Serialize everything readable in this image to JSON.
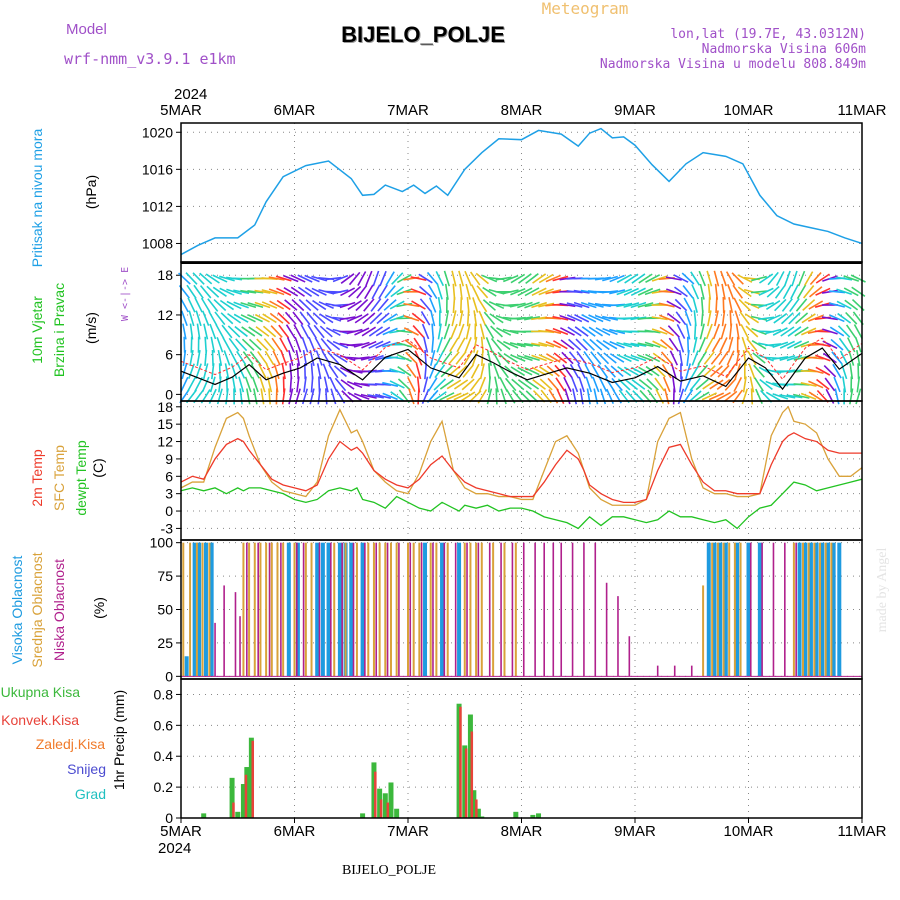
{
  "header": {
    "model_label": "Model",
    "model_name": "wrf-nmm_v3.9.1 e1km",
    "station": "BIJELO_POLJE",
    "product": "Meteogram",
    "lonlat": "lon,lat (19.7E, 43.0312N)",
    "elevation": "Nadmorska Visina 606m",
    "model_elevation": "Nadmorska Visina u modelu 808.849m",
    "footer_station": "BIJELO_POLJE",
    "watermark": "made by Angel"
  },
  "colors": {
    "pressure": "#1ea0e6",
    "temp2m": "#ee3a2a",
    "sfc": "#d9a23a",
    "dew": "#22c322",
    "high_cloud": "#1e9be0",
    "mid_cloud": "#d9a23a",
    "low_cloud": "#b0208c",
    "total_precip": "#3cb83c",
    "conv_precip": "#e8433a",
    "frozen_precip": "#f07a2a",
    "snow": "#4b4bd0",
    "hail": "#20c0c0",
    "purple_label": "#a050c8",
    "wind_ylabel": "#22c322"
  },
  "chart_data": {
    "x_axis": {
      "year": "2024",
      "ticks": [
        "5MAR",
        "6MAR",
        "7MAR",
        "8MAR",
        "9MAR",
        "10MAR",
        "11MAR"
      ],
      "range_days": [
        0,
        6
      ]
    },
    "pressure": {
      "type": "line",
      "ylabel": "Pritisak na nivou mora",
      "unit": "(hPa)",
      "ylim": [
        1006,
        1021
      ],
      "yticks": [
        1008,
        1012,
        1016,
        1020
      ],
      "x": [
        0,
        0.15,
        0.3,
        0.5,
        0.65,
        0.75,
        0.9,
        1.1,
        1.3,
        1.5,
        1.6,
        1.7,
        1.8,
        1.95,
        2.05,
        2.15,
        2.25,
        2.35,
        2.5,
        2.65,
        2.8,
        3.0,
        3.15,
        3.35,
        3.5,
        3.6,
        3.7,
        3.8,
        3.9,
        4.0,
        4.15,
        4.3,
        4.45,
        4.6,
        4.7,
        4.8,
        4.95,
        5.1,
        5.25,
        5.4,
        5.55,
        5.7,
        5.85,
        6.0
      ],
      "y": [
        1006.8,
        1007.8,
        1008.6,
        1008.6,
        1010.0,
        1012.5,
        1015.2,
        1016.4,
        1016.9,
        1015.0,
        1013.2,
        1013.3,
        1014.3,
        1013.6,
        1014.3,
        1013.4,
        1014.2,
        1013.2,
        1016.0,
        1017.8,
        1019.3,
        1019.2,
        1020.2,
        1019.8,
        1018.5,
        1019.9,
        1020.4,
        1019.4,
        1019.5,
        1018.6,
        1016.5,
        1014.7,
        1016.6,
        1017.8,
        1017.6,
        1017.4,
        1016.6,
        1013.2,
        1011.0,
        1010.1,
        1009.7,
        1009.3,
        1008.6,
        1008.0
      ]
    },
    "wind": {
      "type": "line",
      "ylabel": "10m Vjetar",
      "ylabel2": "Brzina i Pravac",
      "unit": "(m/s)",
      "compass": "W <-|-> E",
      "ylim": [
        -1,
        20
      ],
      "yticks": [
        0,
        6,
        12,
        18
      ],
      "x": [
        0,
        0.15,
        0.3,
        0.45,
        0.6,
        0.75,
        0.9,
        1.05,
        1.2,
        1.4,
        1.6,
        1.8,
        2.0,
        2.2,
        2.45,
        2.6,
        2.75,
        2.9,
        3.05,
        3.2,
        3.4,
        3.6,
        3.8,
        4.0,
        4.2,
        4.4,
        4.6,
        4.8,
        5.0,
        5.15,
        5.3,
        5.5,
        5.65,
        5.8,
        6.0
      ],
      "y": [
        3.5,
        2.5,
        1.5,
        2.6,
        4.5,
        2.2,
        3.2,
        4.0,
        5.5,
        4.5,
        2.2,
        5.6,
        6.8,
        4.0,
        2.5,
        6.0,
        4.8,
        3.4,
        2.2,
        3.0,
        4.0,
        3.2,
        1.8,
        2.5,
        4.2,
        2.0,
        2.8,
        1.2,
        5.5,
        4.0,
        0.8,
        5.5,
        7.0,
        3.8,
        6.2
      ]
    },
    "temperature": {
      "type": "line",
      "ylabels": [
        "2m Temp",
        "SFC Temp",
        "dewpt Temp"
      ],
      "unit": "(C)",
      "ylim": [
        -5,
        19
      ],
      "yticks": [
        -3,
        0,
        3,
        6,
        9,
        12,
        15,
        18
      ],
      "x": [
        0,
        0.1,
        0.2,
        0.3,
        0.4,
        0.5,
        0.55,
        0.6,
        0.7,
        0.8,
        0.9,
        1.0,
        1.1,
        1.2,
        1.3,
        1.4,
        1.5,
        1.55,
        1.6,
        1.7,
        1.8,
        1.9,
        2.0,
        2.1,
        2.2,
        2.3,
        2.4,
        2.45,
        2.5,
        2.6,
        2.7,
        2.8,
        2.9,
        3.0,
        3.1,
        3.2,
        3.3,
        3.4,
        3.5,
        3.55,
        3.6,
        3.7,
        3.8,
        3.9,
        4.0,
        4.1,
        4.2,
        4.3,
        4.4,
        4.5,
        4.6,
        4.7,
        4.8,
        4.9,
        5.0,
        5.1,
        5.2,
        5.3,
        5.35,
        5.4,
        5.5,
        5.6,
        5.7,
        5.8,
        5.9,
        6.0
      ],
      "t2m": [
        5.0,
        6.0,
        5.5,
        9.0,
        11.5,
        12.5,
        12.0,
        10.5,
        8.0,
        5.5,
        4.5,
        4.0,
        3.5,
        4.5,
        9.0,
        12.0,
        10.5,
        11.0,
        10.0,
        7.0,
        5.5,
        4.5,
        4.0,
        5.5,
        8.0,
        9.5,
        7.0,
        6.0,
        5.0,
        4.0,
        3.5,
        3.0,
        2.5,
        2.5,
        2.5,
        5.0,
        8.0,
        10.5,
        9.0,
        7.0,
        4.5,
        3.0,
        2.0,
        1.5,
        1.5,
        2.0,
        7.0,
        11.0,
        11.5,
        8.0,
        5.0,
        3.5,
        3.5,
        3.0,
        3.0,
        3.0,
        8.0,
        12.0,
        13.0,
        13.5,
        12.5,
        12.0,
        10.5,
        10.0,
        10.0,
        10.0
      ],
      "sfc": [
        4.0,
        5.0,
        5.0,
        11.0,
        16.0,
        17.0,
        16.0,
        13.0,
        8.0,
        5.0,
        3.5,
        3.0,
        2.5,
        5.0,
        13.0,
        17.5,
        13.5,
        14.0,
        12.0,
        7.0,
        5.0,
        3.5,
        3.0,
        6.5,
        12.0,
        15.5,
        7.0,
        5.5,
        4.0,
        3.0,
        3.0,
        2.5,
        2.5,
        2.0,
        2.0,
        7.0,
        12.0,
        13.0,
        10.0,
        7.0,
        4.0,
        2.0,
        1.0,
        1.0,
        1.0,
        2.0,
        12.0,
        16.0,
        17.0,
        9.0,
        4.0,
        3.0,
        3.0,
        2.5,
        2.5,
        3.0,
        13.0,
        17.0,
        18.0,
        15.5,
        15.0,
        13.5,
        9.0,
        6.0,
        6.0,
        7.5
      ],
      "dew": [
        3.5,
        4.0,
        3.5,
        4.0,
        3.0,
        4.0,
        3.5,
        4.0,
        4.0,
        3.5,
        3.0,
        2.0,
        1.5,
        2.0,
        3.5,
        4.0,
        3.5,
        4.0,
        2.0,
        1.5,
        0.5,
        2.5,
        1.5,
        0.5,
        0.0,
        1.5,
        0.5,
        0.0,
        1.0,
        0.5,
        1.0,
        0.0,
        0.5,
        0.5,
        0.0,
        -1.0,
        -1.5,
        -2.0,
        -3.0,
        -2.0,
        -1.0,
        -2.5,
        -1.0,
        -1.0,
        -1.5,
        -2.0,
        -1.5,
        0.0,
        -1.0,
        -1.0,
        -1.5,
        -2.0,
        -1.5,
        -3.0,
        -1.0,
        0.5,
        1.0,
        3.0,
        4.0,
        5.0,
        4.5,
        3.5,
        4.0,
        4.5,
        5.0,
        5.5
      ]
    },
    "clouds": {
      "type": "bar",
      "ylabels": [
        "Visoka Oblacnost",
        "Srednja Oblacnost",
        "Niska Oblacnost"
      ],
      "unit": "(%)",
      "ylim": [
        -2,
        102
      ],
      "yticks": [
        0,
        25,
        50,
        75,
        100
      ],
      "high_x": [
        0.05,
        0.12,
        0.16,
        0.22,
        0.27,
        0.95,
        1.03,
        1.2,
        1.25,
        1.3,
        1.4,
        1.45,
        1.5,
        1.6,
        2.15,
        2.3,
        2.45,
        4.65,
        4.7,
        4.75,
        4.8,
        4.9,
        5.0,
        5.1,
        5.45,
        5.5,
        5.55,
        5.6,
        5.65,
        5.7,
        5.75,
        5.8
      ],
      "high_y": [
        15,
        100,
        100,
        100,
        100,
        100,
        100,
        100,
        100,
        100,
        100,
        100,
        100,
        100,
        100,
        100,
        100,
        100,
        100,
        100,
        100,
        100,
        100,
        100,
        100,
        100,
        100,
        100,
        100,
        100,
        100,
        100
      ],
      "mid_x": [
        0.02,
        0.08,
        0.14,
        0.19,
        0.25,
        0.55,
        0.6,
        0.65,
        0.7,
        0.75,
        0.8,
        0.85,
        0.9,
        1.0,
        1.1,
        1.15,
        1.35,
        1.45,
        1.55,
        1.65,
        1.7,
        1.75,
        1.8,
        1.85,
        1.9,
        2.0,
        2.05,
        2.1,
        2.2,
        2.25,
        2.35,
        2.5,
        2.55,
        2.6,
        2.65,
        2.75,
        2.85,
        2.95,
        4.6,
        4.68,
        4.73,
        4.78,
        4.83,
        4.88,
        4.93,
        5.4,
        5.48,
        5.53,
        5.58,
        5.63,
        5.68,
        5.73
      ],
      "mid_y": [
        100,
        100,
        100,
        100,
        100,
        100,
        100,
        100,
        100,
        100,
        100,
        100,
        100,
        100,
        100,
        100,
        100,
        100,
        100,
        100,
        100,
        100,
        100,
        100,
        100,
        100,
        100,
        100,
        100,
        100,
        100,
        100,
        100,
        100,
        100,
        100,
        100,
        100,
        68,
        100,
        100,
        100,
        100,
        100,
        100,
        100,
        100,
        100,
        100,
        100,
        100,
        100
      ],
      "low_x": [
        0.3,
        0.38,
        0.48,
        0.52,
        0.58,
        0.68,
        0.78,
        0.88,
        1.02,
        1.08,
        1.22,
        1.32,
        1.42,
        1.52,
        1.62,
        1.72,
        1.82,
        1.92,
        2.02,
        2.12,
        2.22,
        2.32,
        2.42,
        2.52,
        2.62,
        2.72,
        2.82,
        2.92,
        3.02,
        3.12,
        3.2,
        3.28,
        3.35,
        3.45,
        3.55,
        3.65,
        3.75,
        3.85,
        3.95,
        4.2,
        4.35,
        4.5,
        5.02,
        5.12,
        5.22,
        5.32,
        5.42
      ],
      "low_y": [
        40,
        68,
        63,
        45,
        100,
        100,
        100,
        100,
        100,
        100,
        100,
        100,
        100,
        100,
        100,
        100,
        100,
        100,
        100,
        100,
        100,
        100,
        100,
        100,
        100,
        100,
        100,
        100,
        100,
        100,
        100,
        100,
        100,
        100,
        100,
        100,
        70,
        60,
        30,
        8,
        8,
        8,
        100,
        100,
        100,
        100,
        100
      ]
    },
    "precip": {
      "type": "bar",
      "ylabels": [
        "Ukupna Kisa",
        "Konvek.Kisa",
        "Zaledj.Kisa",
        "Snijeg",
        "Grad"
      ],
      "unit": "1hr Precip (mm)",
      "ylim": [
        0,
        0.9
      ],
      "yticks": [
        0,
        0.2,
        0.4,
        0.6,
        0.8
      ],
      "total_x": [
        0.2,
        0.45,
        0.5,
        0.55,
        0.58,
        0.62,
        1.6,
        1.7,
        1.75,
        1.8,
        1.85,
        1.9,
        2.45,
        2.5,
        2.55,
        2.58,
        2.62,
        2.65,
        2.95,
        3.1,
        3.15
      ],
      "total_y": [
        0.03,
        0.26,
        0.04,
        0.22,
        0.33,
        0.52,
        0.03,
        0.36,
        0.19,
        0.16,
        0.23,
        0.06,
        0.74,
        0.47,
        0.67,
        0.18,
        0.06,
        0.01,
        0.04,
        0.02,
        0.03
      ],
      "conv_x": [
        0.46,
        0.57,
        0.63,
        1.71,
        1.76,
        1.82,
        2.46,
        2.51,
        2.56,
        2.6
      ],
      "conv_y": [
        0.1,
        0.28,
        0.5,
        0.3,
        0.12,
        0.1,
        0.72,
        0.45,
        0.56,
        0.12
      ]
    }
  }
}
